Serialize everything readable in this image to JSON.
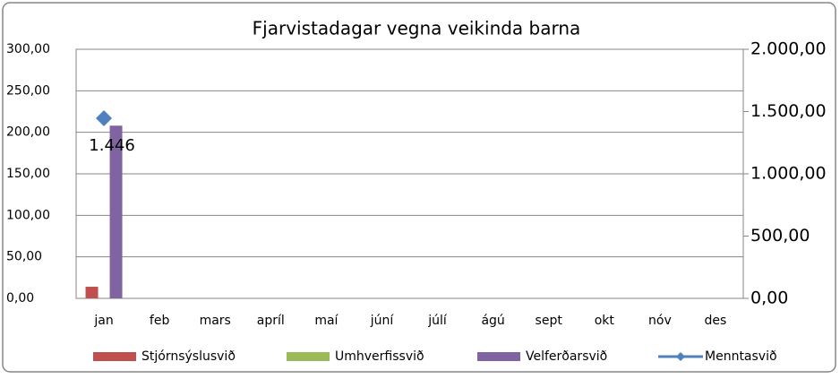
{
  "chart_data": {
    "type": "bar",
    "title": "Fjarvistadagar vegna veikinda barna",
    "categories": [
      "jan",
      "feb",
      "mars",
      "apríl",
      "maí",
      "júní",
      "júlí",
      "ágú",
      "sept",
      "okt",
      "nóv",
      "des"
    ],
    "series": [
      {
        "name": "Stjórnsýslusvið",
        "color": "#c0504d",
        "values": [
          14,
          null,
          null,
          null,
          null,
          null,
          null,
          null,
          null,
          null,
          null,
          null
        ]
      },
      {
        "name": "Umhverfissvið",
        "color": "#9bbb59",
        "values": [
          null,
          null,
          null,
          null,
          null,
          null,
          null,
          null,
          null,
          null,
          null,
          null
        ]
      },
      {
        "name": "Velferðarsvið",
        "color": "#8064a2",
        "values": [
          208,
          null,
          null,
          null,
          null,
          null,
          null,
          null,
          null,
          null,
          null,
          null
        ]
      },
      {
        "name": "Menntasvið",
        "color": "#4f81bd",
        "axis": "y2",
        "values": [
          1446,
          null,
          null,
          null,
          null,
          null,
          null,
          null,
          null,
          null,
          null,
          null
        ],
        "value_labels": [
          "1.446",
          null,
          null,
          null,
          null,
          null,
          null,
          null,
          null,
          null,
          null,
          null
        ]
      }
    ],
    "ylim": [
      0,
      300
    ],
    "yticks": [
      {
        "value": 0,
        "label": "0,00"
      },
      {
        "value": 50,
        "label": "50,00"
      },
      {
        "value": 100,
        "label": "100,00"
      },
      {
        "value": 150,
        "label": "150,00"
      },
      {
        "value": 200,
        "label": "200,00"
      },
      {
        "value": 250,
        "label": "250,00"
      },
      {
        "value": 300,
        "label": "300,00"
      }
    ],
    "y2lim": [
      0,
      2000
    ],
    "y2ticks": [
      {
        "value": 0,
        "label": "0,00"
      },
      {
        "value": 500,
        "label": "500,00"
      },
      {
        "value": 1000,
        "label": "1.000,00"
      },
      {
        "value": 1500,
        "label": "1.500,00"
      },
      {
        "value": 2000,
        "label": "2.000,00"
      }
    ],
    "grid": true,
    "legend": "bottom"
  }
}
